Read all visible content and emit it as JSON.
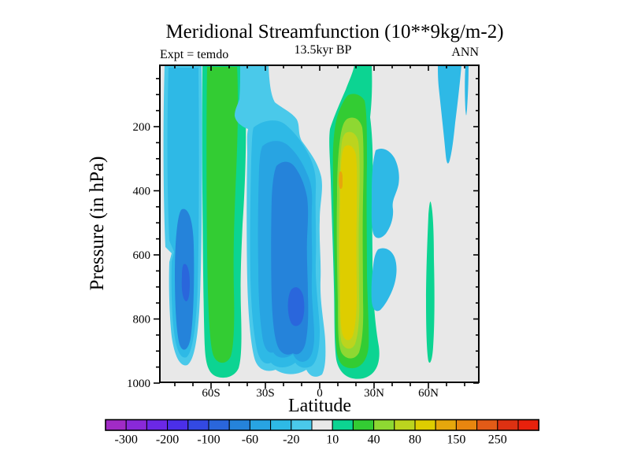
{
  "title": "Meridional Streamfunction (10**9kg/m-2)",
  "header": {
    "experiment_label": "Expt = temdo",
    "time_label": "13.5kyr BP",
    "season_label": "ANN"
  },
  "axes": {
    "x": {
      "title": "Latitude",
      "major_ticks": [
        {
          "deg": -60,
          "label": "60S"
        },
        {
          "deg": -30,
          "label": "30S"
        },
        {
          "deg": 0,
          "label": "0"
        },
        {
          "deg": 30,
          "label": "30N"
        },
        {
          "deg": 60,
          "label": "60N"
        }
      ],
      "minor_tick_step_deg": 10,
      "range_deg": [
        -88,
        88
      ]
    },
    "y": {
      "title": "Pressure (in hPa)",
      "major_ticks": [
        {
          "hpa": 200,
          "label": "200"
        },
        {
          "hpa": 400,
          "label": "400"
        },
        {
          "hpa": 600,
          "label": "600"
        },
        {
          "hpa": 800,
          "label": "800"
        },
        {
          "hpa": 1000,
          "label": "1000"
        }
      ],
      "minor_tick_step_hpa": 50,
      "range_hpa": [
        10,
        1000
      ]
    }
  },
  "chart_data": {
    "type": "contour",
    "field": "meridional streamfunction",
    "units": "10**9 kg/m-2",
    "title": "Meridional Streamfunction (10**9kg/m-2)",
    "subtitle": "13.5kyr BP",
    "experiment": "temdo",
    "season": "ANN",
    "levels": [
      -350,
      -300,
      -250,
      -200,
      -150,
      -100,
      -80,
      -60,
      -40,
      -20,
      -10,
      10,
      20,
      40,
      60,
      80,
      100,
      150,
      200,
      250,
      300,
      350
    ],
    "palette": [
      "#a12bc6",
      "#8929d8",
      "#6b28e6",
      "#4b2fe9",
      "#3349e3",
      "#2a66dc",
      "#2583da",
      "#28a4e2",
      "#2eb9e6",
      "#4ac9ea",
      "#e8e8e8",
      "#0cd492",
      "#33cc33",
      "#8ed832",
      "#bcd41e",
      "#decd00",
      "#e6a70c",
      "#e8860f",
      "#e25b17",
      "#dd3112",
      "#e8210c"
    ],
    "zero_band_color": "#e8e8e8",
    "colorbar": {
      "labels": [
        "-300",
        "-200",
        "-100",
        "-60",
        "-20",
        "10",
        "40",
        "80",
        "150",
        "250"
      ],
      "label_boundary_indices": [
        1,
        3,
        5,
        7,
        9,
        11,
        13,
        15,
        17,
        19
      ]
    },
    "features": [
      {
        "name": "south polar negative cell",
        "lat_range": "86S-65S",
        "pressure_range_hpa": [
          10,
          950
        ],
        "peak_value": -90
      },
      {
        "name": "southern mid-latitude positive band",
        "lat_range": "65S-41S",
        "pressure_range_hpa": [
          10,
          985
        ],
        "peak_value": 30
      },
      {
        "name": "southern tropical negative cell",
        "lat_range": "44S-3N",
        "pressure_range_hpa": [
          10,
          975
        ],
        "peak_value": -90
      },
      {
        "name": "northern tropical positive cell",
        "lat_range": "3N-34N",
        "pressure_range_hpa": [
          10,
          990
        ],
        "peak_value": 120
      },
      {
        "name": "northern subtropical negative patches",
        "lat_range": "29N-44N",
        "pressure_range_hpa": [
          270,
          790
        ],
        "peak_value": -30
      },
      {
        "name": "northern mid-latitude positive sliver",
        "lat_range": "59N-63N",
        "pressure_range_hpa": [
          440,
          945
        ],
        "peak_value": 15
      },
      {
        "name": "northern high-latitude upper negative wedge",
        "lat_range": "65N-83N",
        "pressure_range_hpa": [
          10,
          310
        ],
        "peak_value": -30
      }
    ]
  }
}
